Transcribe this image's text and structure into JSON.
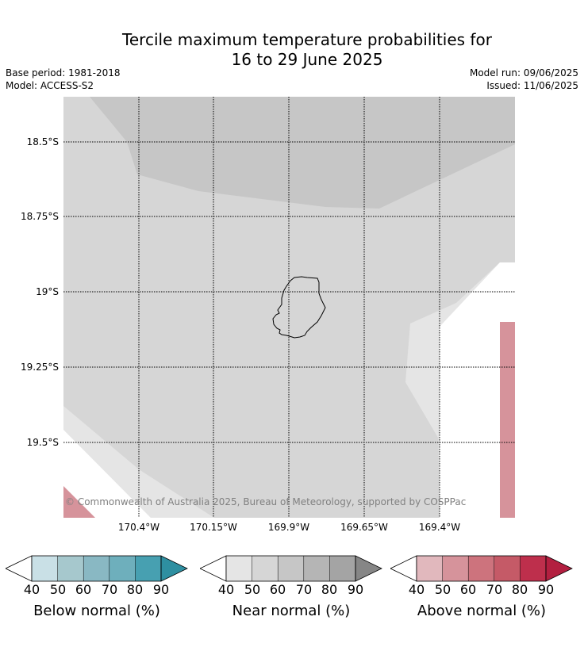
{
  "title_line1": "Tercile maximum temperature probabilities for",
  "title_line2": "16 to 29 June 2025",
  "meta_left": [
    "Base period: 1981-2018",
    "Model: ACCESS-S2"
  ],
  "meta_right": [
    "Model run: 09/06/2025",
    "Issued: 11/06/2025"
  ],
  "map": {
    "lat_labels": [
      "18.5°S",
      "18.75°S",
      "19°S",
      "19.25°S",
      "19.5°S"
    ],
    "lon_labels": [
      "170.4°W",
      "170.15°W",
      "169.9°W",
      "169.65°W",
      "169.4°W"
    ],
    "copyright": "© Commonwealth of Australia 2025, Bureau of Meteorology, supported by COSPPac",
    "colors": {
      "near_50": "#d6d6d6",
      "near_60": "#c6c6c6",
      "near_40": "#e5e5e5",
      "above_50": "#d6939b",
      "no_data": "#ffffff"
    }
  },
  "legends": [
    {
      "name": "below",
      "title": "Below normal (%)",
      "ticks": [
        "40",
        "50",
        "60",
        "70",
        "80",
        "90"
      ],
      "colors": [
        "#ffffff",
        "#c9e0e6",
        "#a6c8cd",
        "#89b8c3",
        "#6eafbc",
        "#47a0b1",
        "#2e8fa1"
      ]
    },
    {
      "name": "near",
      "title": "Near normal (%)",
      "ticks": [
        "40",
        "50",
        "60",
        "70",
        "80",
        "90"
      ],
      "colors": [
        "#ffffff",
        "#e5e5e5",
        "#d6d6d6",
        "#c6c6c6",
        "#b5b5b5",
        "#a4a4a4",
        "#868686"
      ]
    },
    {
      "name": "above",
      "title": "Above normal (%)",
      "ticks": [
        "40",
        "50",
        "60",
        "70",
        "80",
        "90"
      ],
      "colors": [
        "#ffffff",
        "#e1b8bd",
        "#d6939b",
        "#cd737d",
        "#c55a67",
        "#be2f4c",
        "#b31f40"
      ]
    }
  ]
}
